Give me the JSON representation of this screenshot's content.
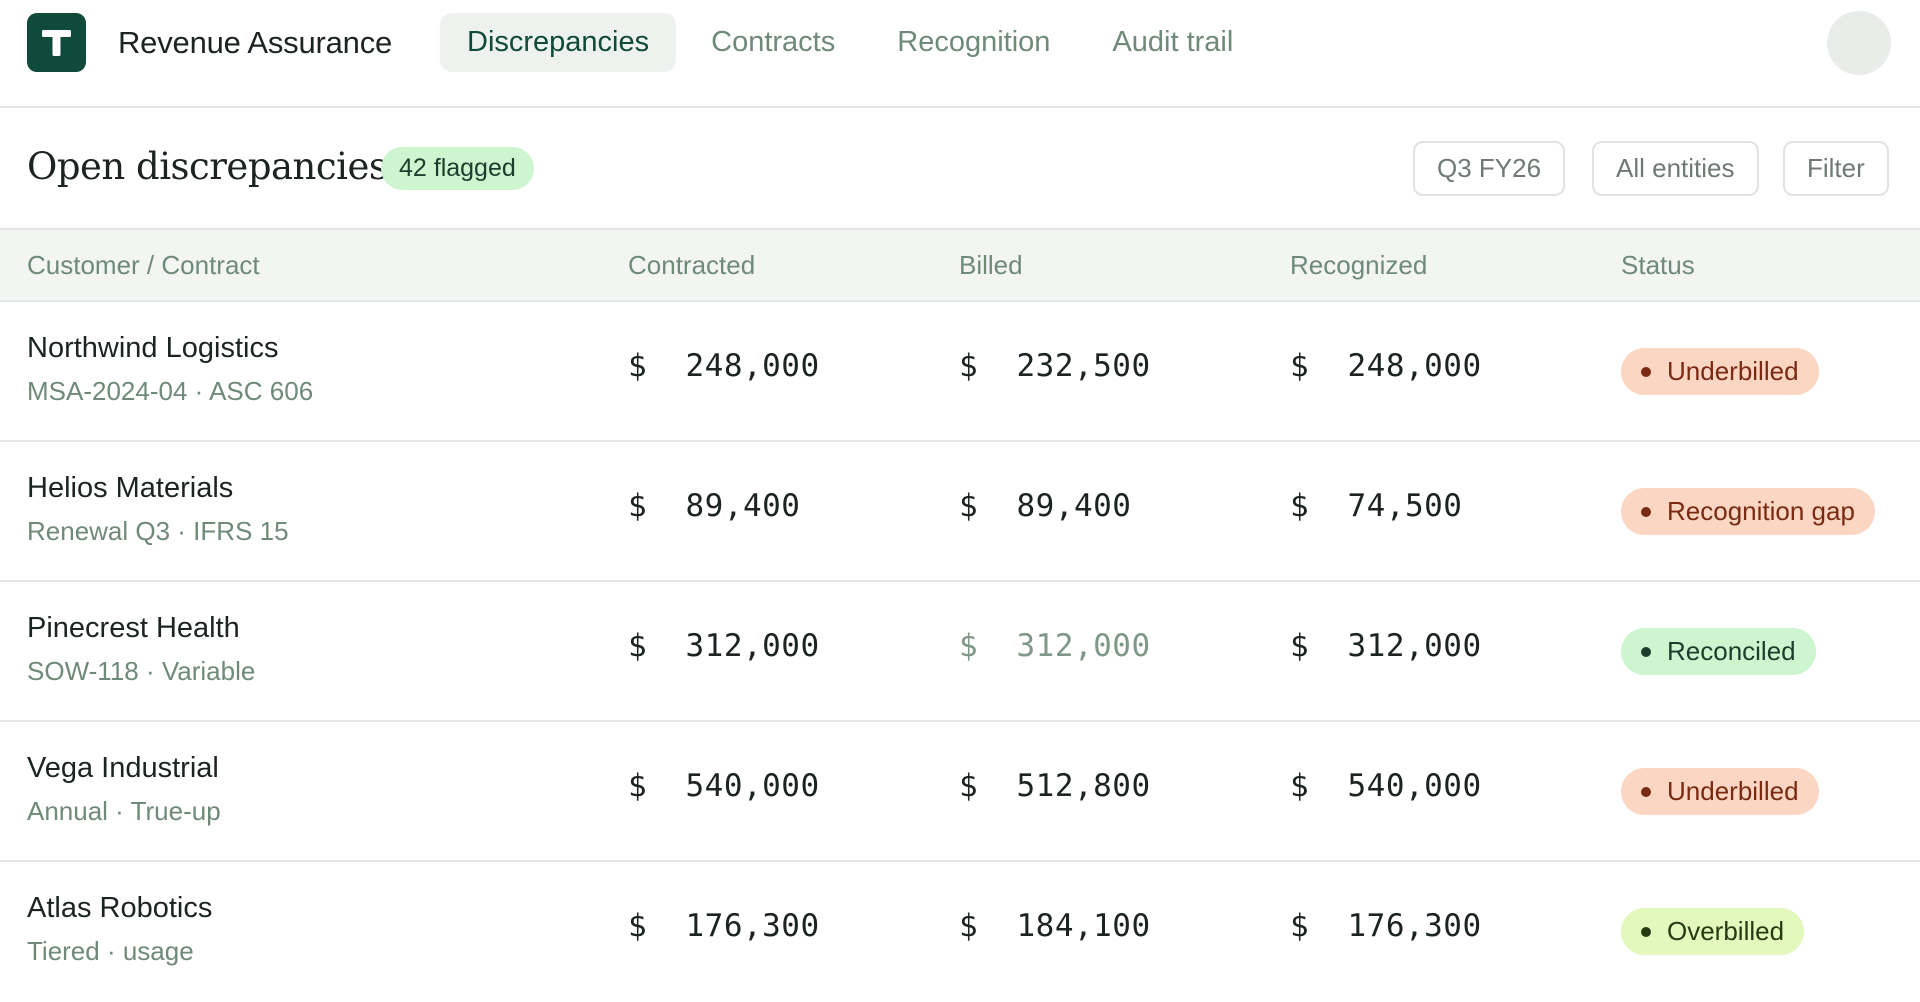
{
  "header": {
    "app_title": "Revenue Assurance",
    "nav": [
      {
        "label": "Discrepancies",
        "active": true
      },
      {
        "label": "Contracts",
        "active": false
      },
      {
        "label": "Recognition",
        "active": false
      },
      {
        "label": "Audit trail",
        "active": false
      }
    ],
    "logo_icon": "t-logo-icon",
    "avatar_icon": "user-avatar"
  },
  "page": {
    "title": "Open discrepancies",
    "badge": "42 flagged",
    "filters": {
      "period": "Q3 FY26",
      "entities": "All entities",
      "filter": "Filter"
    }
  },
  "table": {
    "columns": [
      "Customer / Contract",
      "Contracted",
      "Billed",
      "Recognized",
      "Status"
    ],
    "rows": [
      {
        "customer": "Northwind Logistics",
        "contract": "MSA-2024-04 · ASC 606",
        "contracted": "$  248,000",
        "billed": "$  232,500",
        "recognized": "$  248,000",
        "status": "Underbilled"
      },
      {
        "customer": "Helios Materials",
        "contract": "Renewal Q3 · IFRS 15",
        "contracted": "$  89,400",
        "billed": "$  89,400",
        "recognized": "$  74,500",
        "status": "Recognition gap"
      },
      {
        "customer": "Pinecrest Health",
        "contract": "SOW-118 · Variable",
        "contracted": "$  312,000",
        "billed": "$  312,000",
        "recognized": "$  312,000",
        "status": "Reconciled"
      },
      {
        "customer": "Vega Industrial",
        "contract": "Annual · True-up",
        "contracted": "$  540,000",
        "billed": "$  512,800",
        "recognized": "$  540,000",
        "status": "Underbilled"
      },
      {
        "customer": "Atlas Robotics",
        "contract": "Tiered · usage",
        "contracted": "$  176,300",
        "billed": "$  184,100",
        "recognized": "$  176,300",
        "status": "Overbilled"
      }
    ]
  },
  "colors": {
    "brand": "#0f4a3a",
    "underbilled_bg": "#fbd6c3",
    "reconciled_bg": "#cdf5cf",
    "overbilled_bg": "#e3f8bd"
  }
}
